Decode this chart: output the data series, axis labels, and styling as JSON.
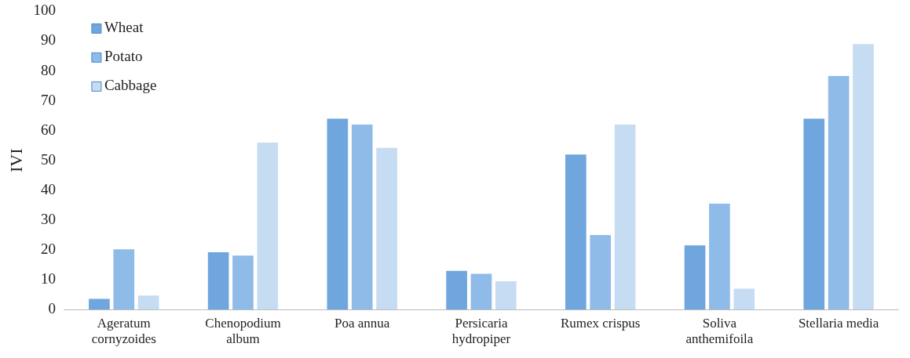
{
  "chart_data": {
    "type": "bar",
    "ylabel": "IVI",
    "categories": [
      "Ageratum cornyzoides",
      "Chenopodium album",
      "Poa annua",
      "Persicaria hydropiper",
      "Rumex crispus",
      "Soliva anthemifoila",
      "Stellaria media"
    ],
    "series": [
      {
        "name": "Wheat",
        "color": "#6fa6de",
        "values": [
          3.6,
          19.2,
          64,
          13,
          52,
          21.5,
          64
        ]
      },
      {
        "name": "Potato",
        "color": "#8fbbe8",
        "values": [
          20.2,
          18.1,
          62,
          12,
          25,
          35.5,
          78.3
        ]
      },
      {
        "name": "Cabbage",
        "color": "#c6dcf3",
        "values": [
          4.7,
          56,
          54.2,
          9.5,
          62,
          7,
          89
        ]
      }
    ],
    "ylim": [
      0,
      100
    ],
    "yticks": [
      0,
      10,
      20,
      30,
      40,
      50,
      60,
      70,
      80,
      90,
      100
    ],
    "grid": false,
    "legend": "top left"
  }
}
